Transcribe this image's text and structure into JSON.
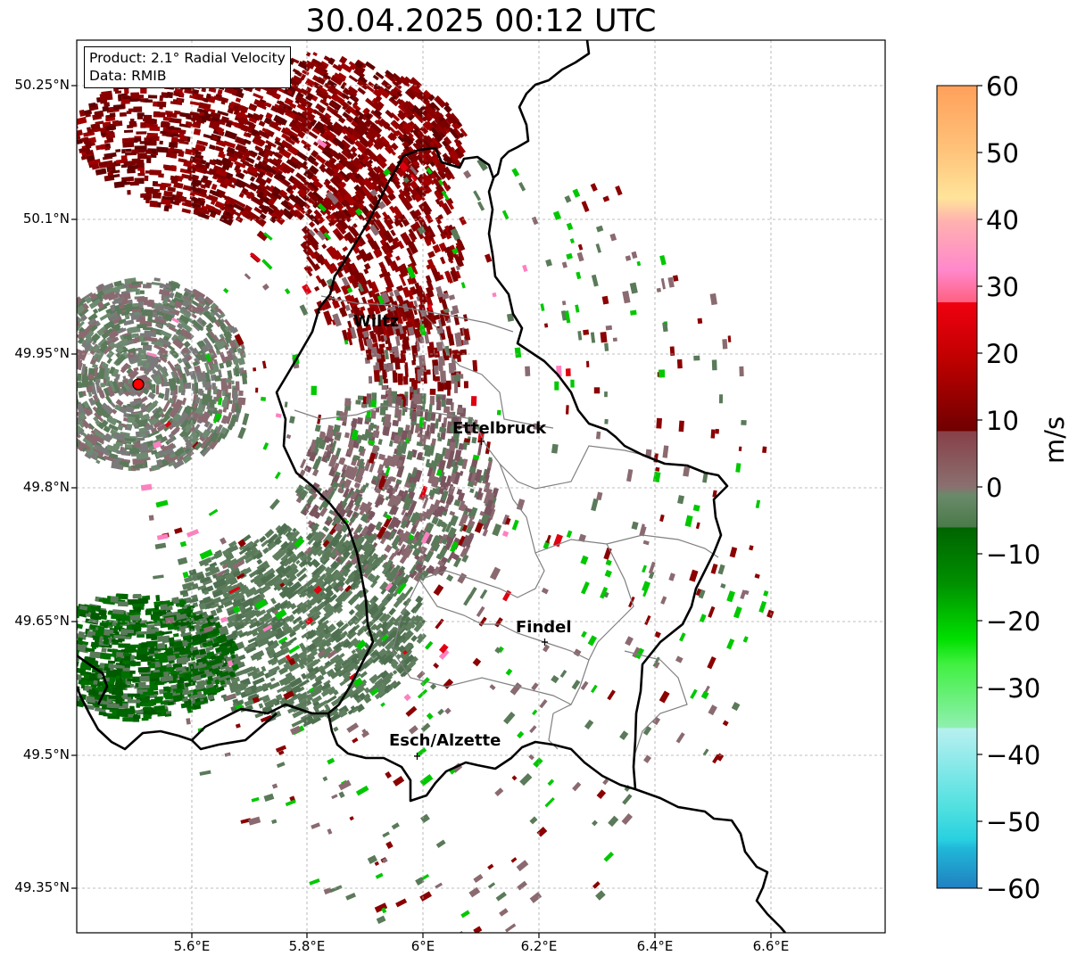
{
  "title": "30.04.2025 00:12 UTC",
  "info": {
    "product": "Product: 2.1° Radial Velocity",
    "data": "Data: RMIB"
  },
  "axes": {
    "lat_labels": [
      "50.25°N",
      "50.1°N",
      "49.95°N",
      "49.8°N",
      "49.65°N",
      "49.5°N",
      "49.35°N"
    ],
    "lon_labels": [
      "5.6°E",
      "5.8°E",
      "6°E",
      "6.2°E",
      "6.4°E",
      "6.6°E"
    ]
  },
  "cities": [
    {
      "name": "Wiltz"
    },
    {
      "name": "Ettelbruck"
    },
    {
      "name": "Findel"
    },
    {
      "name": "Esch/Alzette"
    }
  ],
  "colorbar": {
    "ticks": [
      "60",
      "50",
      "40",
      "30",
      "20",
      "10",
      "0",
      "−10",
      "−20",
      "−30",
      "−40",
      "−50",
      "−60"
    ],
    "unit": "m/s",
    "min": -60,
    "max": 60
  },
  "colors": {
    "inbound_strong": "#006400",
    "inbound": "#00c800",
    "near_zero_neg": "#5a7a5a",
    "near_zero_pos": "#8a6a70",
    "outbound": "#8b0000",
    "outbound_strong": "#e00010",
    "radar_site": "#ff0000"
  }
}
